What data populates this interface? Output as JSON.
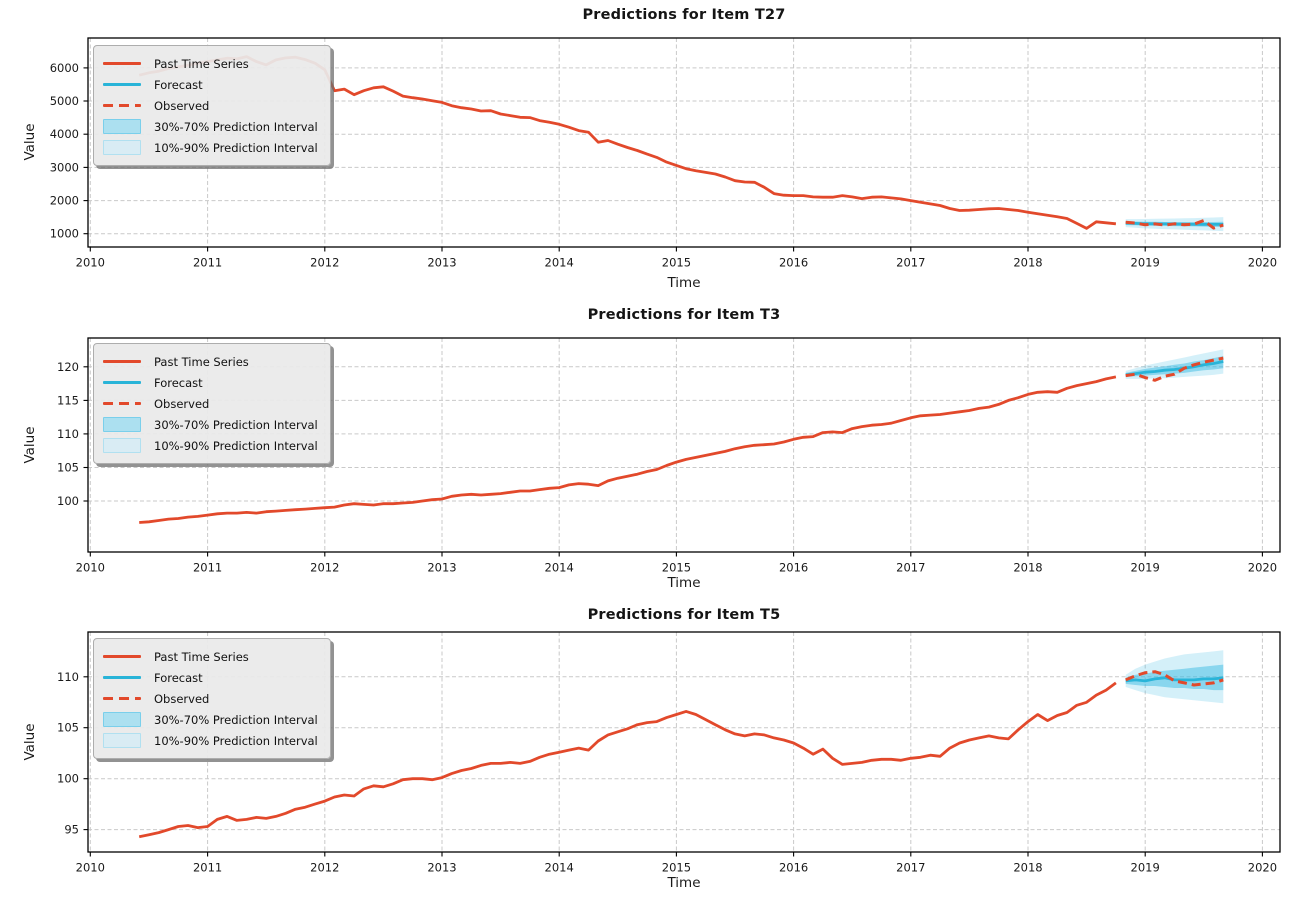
{
  "figure": {
    "background": "#ffffff"
  },
  "colors": {
    "past": "#E2492B",
    "forecast": "#29B4D8",
    "band_30_70": "rgba(61,187,228,0.50)",
    "band_10_90": "rgba(61,187,228,0.22)",
    "band_30_70_swatch": "#ACE0F0",
    "band_10_90_swatch": "#D9ECF4",
    "grid": "#c9c9c9",
    "frame": "#000000",
    "tick_text": "#1a1a1a"
  },
  "legend": {
    "items": [
      {
        "label": "Past Time Series",
        "swatch": "past-line"
      },
      {
        "label": "Forecast",
        "swatch": "forecast-line"
      },
      {
        "label": "Observed",
        "swatch": "observed-dashed"
      },
      {
        "label": "30%-70% Prediction Interval",
        "swatch": "band-30-70"
      },
      {
        "label": "10%-90% Prediction Interval",
        "swatch": "band-10-90"
      }
    ]
  },
  "chart_data": [
    {
      "type": "line",
      "title": "Predictions for Item T27",
      "xlabel": "Time",
      "ylabel": "Value",
      "xlim": [
        2009.98,
        2020.15
      ],
      "ylim": [
        600,
        6900
      ],
      "xticks": [
        2010,
        2011,
        2012,
        2013,
        2014,
        2015,
        2016,
        2017,
        2018,
        2019,
        2020
      ],
      "yticks": [
        1000,
        2000,
        3000,
        4000,
        5000,
        6000
      ],
      "x_start": 2010.4167,
      "x_step": 0.08333,
      "forecast_x_start": 2018.8333,
      "past": [
        5780,
        5850,
        5900,
        5980,
        6030,
        6080,
        6140,
        6190,
        6240,
        6290,
        6270,
        6340,
        6190,
        6090,
        6240,
        6300,
        6320,
        6250,
        6140,
        5940,
        5310,
        5360,
        5190,
        5310,
        5400,
        5430,
        5300,
        5150,
        5100,
        5060,
        5010,
        4960,
        4860,
        4800,
        4760,
        4700,
        4710,
        4610,
        4560,
        4510,
        4500,
        4410,
        4360,
        4300,
        4210,
        4110,
        4060,
        3760,
        3810,
        3700,
        3600,
        3510,
        3400,
        3300,
        3160,
        3060,
        2960,
        2900,
        2850,
        2800,
        2710,
        2600,
        2560,
        2550,
        2400,
        2210,
        2160,
        2150,
        2150,
        2110,
        2100,
        2100,
        2150,
        2110,
        2060,
        2100,
        2110,
        2080,
        2050,
        2000,
        1950,
        1900,
        1850,
        1760,
        1700,
        1710,
        1730,
        1750,
        1760,
        1730,
        1700,
        1650,
        1600,
        1560,
        1510,
        1460,
        1310,
        1160,
        1360,
        1330,
        1300
      ],
      "forecast": [
        1320,
        1310,
        1300,
        1300,
        1295,
        1290,
        1290,
        1285,
        1285,
        1280,
        1280
      ],
      "observed": [
        1345,
        1320,
        1270,
        1295,
        1260,
        1300,
        1270,
        1290,
        1400,
        1170,
        1260
      ],
      "band_30_70": {
        "lo": [
          1260,
          1255,
          1245,
          1240,
          1235,
          1230,
          1225,
          1220,
          1215,
          1205,
          1200
        ],
        "hi": [
          1380,
          1370,
          1360,
          1360,
          1355,
          1355,
          1350,
          1350,
          1350,
          1355,
          1360
        ]
      },
      "band_10_90": {
        "lo": [
          1200,
          1180,
          1160,
          1150,
          1140,
          1130,
          1120,
          1110,
          1100,
          1090,
          1080
        ],
        "hi": [
          1440,
          1440,
          1445,
          1450,
          1455,
          1460,
          1465,
          1470,
          1480,
          1490,
          1500
        ]
      }
    },
    {
      "type": "line",
      "title": "Predictions for Item T3",
      "xlabel": "Time",
      "ylabel": "Value",
      "xlim": [
        2009.98,
        2020.15
      ],
      "ylim": [
        92.4,
        124.3
      ],
      "xticks": [
        2010,
        2011,
        2012,
        2013,
        2014,
        2015,
        2016,
        2017,
        2018,
        2019,
        2020
      ],
      "yticks": [
        100,
        105,
        110,
        115,
        120
      ],
      "x_start": 2010.4167,
      "x_step": 0.08333,
      "forecast_x_start": 2018.8333,
      "past": [
        96.8,
        96.9,
        97.1,
        97.3,
        97.4,
        97.6,
        97.7,
        97.9,
        98.1,
        98.2,
        98.2,
        98.3,
        98.2,
        98.4,
        98.5,
        98.6,
        98.7,
        98.8,
        98.9,
        99.0,
        99.1,
        99.4,
        99.6,
        99.5,
        99.4,
        99.6,
        99.6,
        99.7,
        99.8,
        100.0,
        100.2,
        100.3,
        100.7,
        100.9,
        101.0,
        100.9,
        101.0,
        101.1,
        101.3,
        101.5,
        101.5,
        101.7,
        101.9,
        102.0,
        102.4,
        102.6,
        102.5,
        102.3,
        103.0,
        103.4,
        103.7,
        104.0,
        104.4,
        104.7,
        105.3,
        105.8,
        106.2,
        106.5,
        106.8,
        107.1,
        107.4,
        107.8,
        108.1,
        108.3,
        108.4,
        108.5,
        108.8,
        109.2,
        109.5,
        109.6,
        110.2,
        110.3,
        110.2,
        110.8,
        111.1,
        111.3,
        111.4,
        111.6,
        112.0,
        112.4,
        112.7,
        112.8,
        112.9,
        113.1,
        113.3,
        113.5,
        113.8,
        114.0,
        114.4,
        115.0,
        115.4,
        115.9,
        116.2,
        116.3,
        116.2,
        116.8,
        117.2,
        117.5,
        117.8,
        118.2,
        118.5
      ],
      "forecast": [
        118.8,
        119.0,
        119.2,
        119.3,
        119.5,
        119.6,
        119.8,
        120.0,
        120.3,
        120.5,
        120.8
      ],
      "observed": [
        118.7,
        118.9,
        118.4,
        118.0,
        118.6,
        118.9,
        119.8,
        120.3,
        120.7,
        121.0,
        121.3
      ],
      "band_30_70": {
        "lo": [
          118.5,
          118.6,
          118.7,
          118.8,
          118.9,
          119.0,
          119.1,
          119.3,
          119.5,
          119.6,
          119.8
        ],
        "hi": [
          119.1,
          119.4,
          119.7,
          119.9,
          120.1,
          120.3,
          120.5,
          120.8,
          121.0,
          121.3,
          121.6
        ]
      },
      "band_10_90": {
        "lo": [
          118.2,
          118.2,
          118.2,
          118.3,
          118.3,
          118.4,
          118.5,
          118.6,
          118.7,
          118.8,
          119.0
        ],
        "hi": [
          119.4,
          119.8,
          120.2,
          120.5,
          120.8,
          121.1,
          121.4,
          121.7,
          122.0,
          122.3,
          122.6
        ]
      }
    },
    {
      "type": "line",
      "title": "Predictions for Item T5",
      "xlabel": "Time",
      "ylabel": "Value",
      "xlim": [
        2009.98,
        2020.15
      ],
      "ylim": [
        92.8,
        114.4
      ],
      "xticks": [
        2010,
        2011,
        2012,
        2013,
        2014,
        2015,
        2016,
        2017,
        2018,
        2019,
        2020
      ],
      "yticks": [
        95,
        100,
        105,
        110
      ],
      "x_start": 2010.4167,
      "x_step": 0.08333,
      "forecast_x_start": 2018.8333,
      "past": [
        94.3,
        94.5,
        94.7,
        95.0,
        95.3,
        95.4,
        95.2,
        95.3,
        96.0,
        96.3,
        95.9,
        96.0,
        96.2,
        96.1,
        96.3,
        96.6,
        97.0,
        97.2,
        97.5,
        97.8,
        98.2,
        98.4,
        98.3,
        99.0,
        99.3,
        99.2,
        99.5,
        99.9,
        100.0,
        100.0,
        99.9,
        100.1,
        100.5,
        100.8,
        101.0,
        101.3,
        101.5,
        101.5,
        101.6,
        101.5,
        101.7,
        102.1,
        102.4,
        102.6,
        102.8,
        103.0,
        102.8,
        103.7,
        104.3,
        104.6,
        104.9,
        105.3,
        105.5,
        105.6,
        106.0,
        106.3,
        106.6,
        106.3,
        105.8,
        105.3,
        104.8,
        104.4,
        104.2,
        104.4,
        104.3,
        104.0,
        103.8,
        103.5,
        103.0,
        102.4,
        102.9,
        102.0,
        101.4,
        101.5,
        101.6,
        101.8,
        101.9,
        101.9,
        101.8,
        102.0,
        102.1,
        102.3,
        102.2,
        103.0,
        103.5,
        103.8,
        104.0,
        104.2,
        104.0,
        103.9,
        104.8,
        105.6,
        106.3,
        105.7,
        106.2,
        106.5,
        107.2,
        107.5,
        108.2,
        108.7,
        109.4
      ],
      "forecast": [
        109.6,
        109.7,
        109.6,
        109.8,
        109.9,
        109.7,
        109.7,
        109.7,
        109.8,
        109.8,
        109.9
      ],
      "observed": [
        109.7,
        110.1,
        110.4,
        110.5,
        110.2,
        109.6,
        109.4,
        109.2,
        109.3,
        109.4,
        109.7
      ],
      "band_30_70": {
        "lo": [
          109.3,
          109.2,
          109.1,
          109.1,
          109.0,
          108.9,
          108.9,
          108.8,
          108.8,
          108.7,
          108.7
        ],
        "hi": [
          109.9,
          110.2,
          110.3,
          110.5,
          110.6,
          110.7,
          110.8,
          110.9,
          111.0,
          111.1,
          111.2
        ]
      },
      "band_10_90": {
        "lo": [
          109.0,
          108.7,
          108.4,
          108.2,
          108.0,
          107.9,
          107.8,
          107.7,
          107.6,
          107.5,
          107.4
        ],
        "hi": [
          110.2,
          110.8,
          111.2,
          111.5,
          111.8,
          112.0,
          112.2,
          112.3,
          112.4,
          112.5,
          112.6
        ]
      }
    }
  ]
}
